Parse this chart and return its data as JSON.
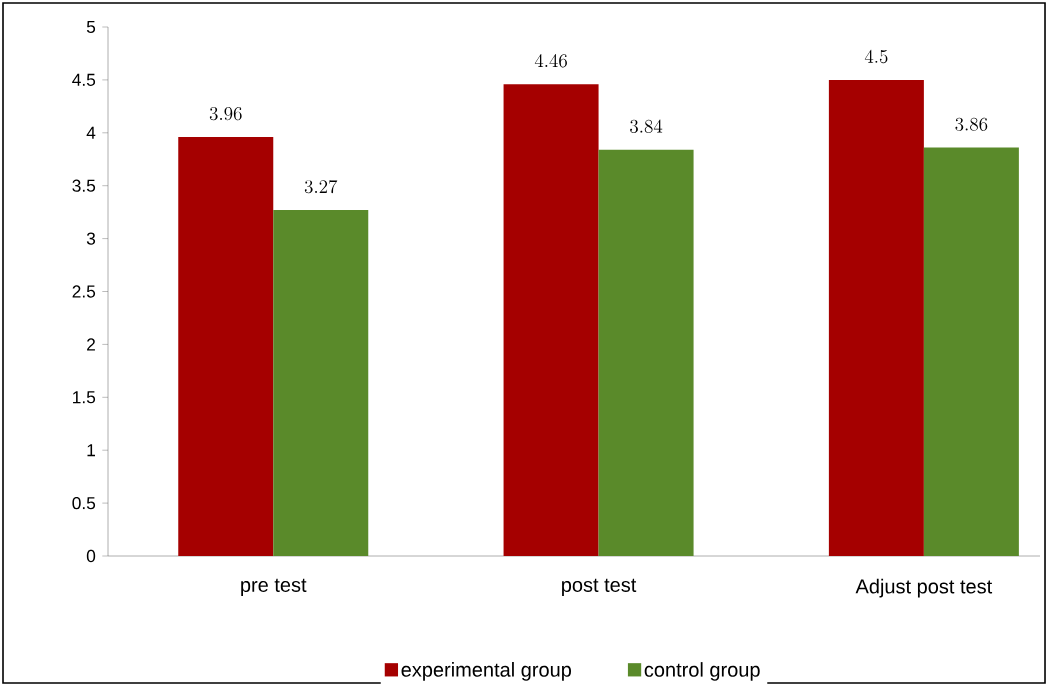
{
  "chart_data": {
    "type": "bar",
    "categories": [
      "pre test",
      "post test",
      "Adjust post test"
    ],
    "series": [
      {
        "name": "experimental group",
        "color": "#a50000",
        "values": [
          3.96,
          4.46,
          4.5
        ]
      },
      {
        "name": "control group",
        "color": "#5a8a2a",
        "values": [
          3.27,
          3.84,
          3.86
        ]
      }
    ],
    "ylim": [
      0,
      5
    ],
    "yticks": [
      0,
      0.5,
      1,
      1.5,
      2,
      2.5,
      3,
      3.5,
      4,
      4.5,
      5
    ],
    "data_labels": true,
    "grid": false,
    "legend": "bottom"
  }
}
